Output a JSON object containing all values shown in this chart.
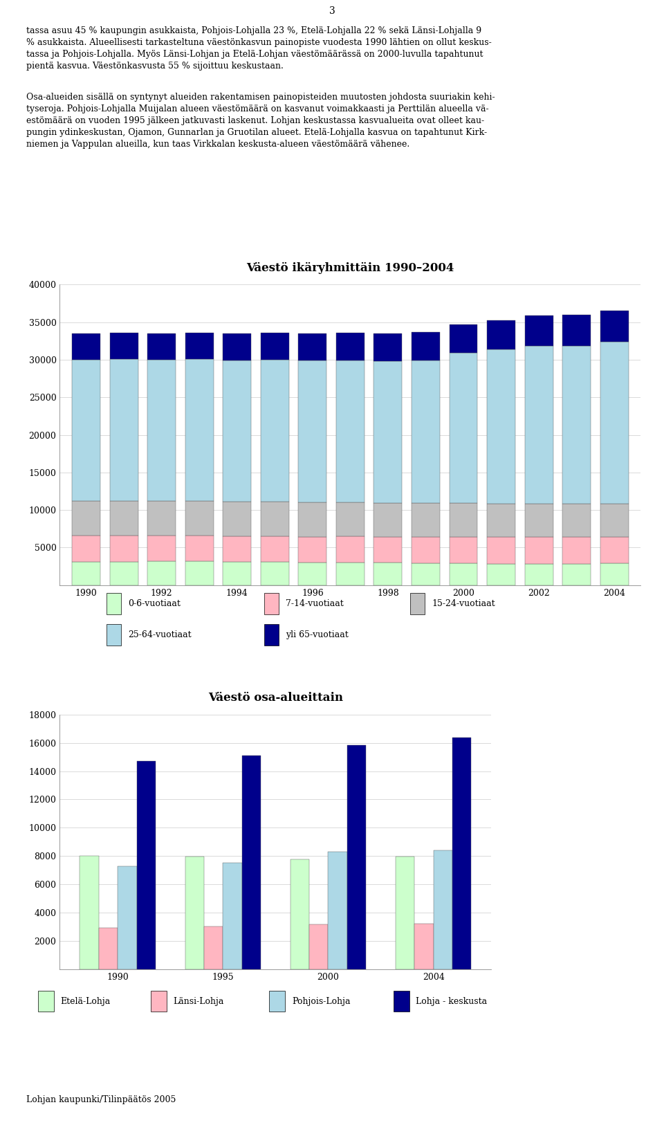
{
  "page_number": "3",
  "para1": "tassa asuu 45 % kaupungin asukkaista, Pohjois-Lohjalla 23 %, Etelä-Lohjalla 22 % sekä Länsi-Lohjalla 9\n% asukkaista. Alueellisesti tarkasteltuna väestönkasvun painopiste vuodesta 1990 lähtien on ollut keskus-\ntassa ja Pohjois-Lohjalla. Myös Länsi-Lohjan ja Etelä-Lohjan väestömäärässä on 2000-luvulla tapahtunut\npientä kasvua. Väestönkasvusta 55 % sijoittuu keskustaan.",
  "para2": "Osa-alueiden sisällä on syntynyt alueiden rakentamisen painopisteiden muutosten johdosta suuriakin kehi-\ntyseroja. Pohjois-Lohjalla Muijalan alueen väestömäärä on kasvanut voimakkaasti ja Perttilän alueella vä-\nestömäärä on vuoden 1995 jälkeen jatkuvasti laskenut. Lohjan keskustassa kasvualueita ovat olleet kau-\npungin ydinkeskustan, Ojamon, Gunnarlan ja Gruotilan alueet. Etelä-Lohjalla kasvua on tapahtunut Kirk-\nniemen ja Vappulan alueilla, kun taas Virkkalan keskusta-alueen väestömäärä vähenee.",
  "chart1": {
    "title": "Väestö ikäryhmittäin 1990–2004",
    "years": [
      1990,
      1991,
      1992,
      1993,
      1994,
      1995,
      1996,
      1997,
      1998,
      1999,
      2000,
      2001,
      2002,
      2003,
      2004
    ],
    "seg0_6": [
      3100,
      3150,
      3200,
      3200,
      3150,
      3100,
      3050,
      3050,
      3000,
      2950,
      2900,
      2850,
      2850,
      2850,
      2900
    ],
    "seg7_14": [
      3500,
      3500,
      3450,
      3450,
      3400,
      3400,
      3400,
      3450,
      3450,
      3500,
      3500,
      3550,
      3600,
      3600,
      3550
    ],
    "seg15_24": [
      4600,
      4600,
      4550,
      4600,
      4600,
      4600,
      4550,
      4550,
      4500,
      4500,
      4500,
      4450,
      4400,
      4400,
      4400
    ],
    "seg25_64": [
      18800,
      18800,
      18800,
      18800,
      18800,
      18900,
      18900,
      18900,
      18900,
      19000,
      20000,
      20500,
      21000,
      21000,
      21500
    ],
    "segyli65": [
      3500,
      3500,
      3500,
      3500,
      3550,
      3550,
      3600,
      3600,
      3650,
      3700,
      3800,
      3900,
      4000,
      4100,
      4200
    ],
    "colors": [
      "#ccffcc",
      "#ffb6c1",
      "#c0c0c0",
      "#add8e6",
      "#00008b"
    ],
    "labels": [
      "0-6-vuotiaat",
      "7-14-vuotiaat",
      "15-24-vuotiaat",
      "25-64-vuotiaat",
      "yli 65-vuotiaat"
    ],
    "ylim": [
      0,
      40000
    ],
    "yticks": [
      0,
      5000,
      10000,
      15000,
      20000,
      25000,
      30000,
      35000,
      40000
    ],
    "xticks": [
      1990,
      1992,
      1994,
      1996,
      1998,
      2000,
      2002,
      2004
    ]
  },
  "chart2": {
    "title": "Väestö osa-alueittain",
    "years": [
      1990,
      1995,
      2000,
      2004
    ],
    "year_labels": [
      "1990",
      "1995",
      "2000",
      "2004"
    ],
    "etela_lohja": [
      8000,
      7950,
      7800,
      7950
    ],
    "lansi_lohja": [
      2950,
      3050,
      3200,
      3250
    ],
    "pohjois_lohja": [
      7300,
      7550,
      8300,
      8400
    ],
    "lohja_keskusta": [
      14700,
      15100,
      15850,
      16350
    ],
    "colors": [
      "#ccffcc",
      "#ffb6c1",
      "#add8e6",
      "#00008b"
    ],
    "labels": [
      "Etelä-Lohja",
      "Länsi-Lohja",
      "Pohjois-Lohja",
      "Lohja - keskusta"
    ],
    "ylim": [
      0,
      18000
    ],
    "yticks": [
      0,
      2000,
      4000,
      6000,
      8000,
      10000,
      12000,
      14000,
      16000,
      18000
    ]
  },
  "footer": "Lohjan kaupunki/Tilinpäätös 2005",
  "bg_color": "#ffffff",
  "text_fontsize": 9.0,
  "chart_title_fontsize": 12,
  "tick_fontsize": 9,
  "legend_fontsize": 9
}
